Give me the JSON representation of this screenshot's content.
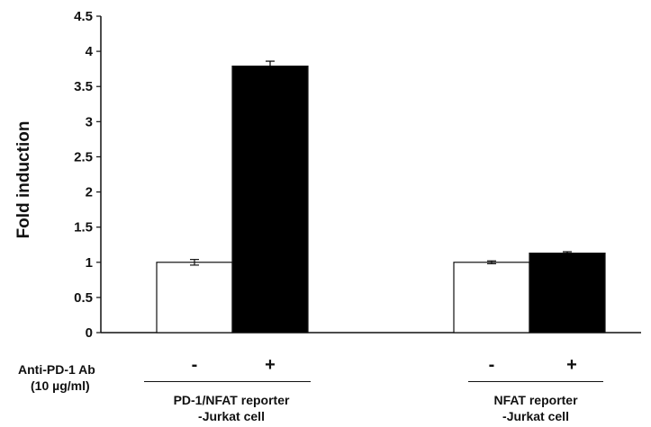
{
  "chart_data": {
    "type": "bar",
    "ylabel": "Fold induction",
    "ylim": [
      0,
      4.5
    ],
    "yticks": [
      "0",
      "0.5",
      "1",
      "1.5",
      "2",
      "2.5",
      "3",
      "3.5",
      "4",
      "4.5"
    ],
    "treatment_label_line1": "Anti-PD-1 Ab",
    "treatment_label_line2": "(10 µg/ml)",
    "groups": [
      {
        "label_line1": "PD-1/NFAT reporter",
        "label_line2": "-Jurkat cell",
        "bars": [
          {
            "treatment": "-",
            "value": 1.0,
            "error": 0.04,
            "color": "#ffffff"
          },
          {
            "treatment": "+",
            "value": 3.79,
            "error": 0.07,
            "color": "#000000"
          }
        ]
      },
      {
        "label_line1": "NFAT reporter",
        "label_line2": "-Jurkat cell",
        "bars": [
          {
            "treatment": "-",
            "value": 1.0,
            "error": 0.02,
            "color": "#ffffff"
          },
          {
            "treatment": "+",
            "value": 1.13,
            "error": 0.02,
            "color": "#000000"
          }
        ]
      }
    ]
  }
}
